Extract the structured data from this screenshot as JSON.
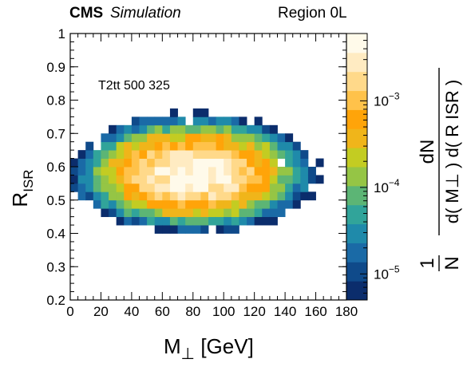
{
  "header": {
    "experiment": "CMS",
    "tag": "Simulation",
    "region": "Region 0L"
  },
  "chart_data": {
    "type": "heatmap",
    "annotation": "T2tt 500 325",
    "xlabel": {
      "base": "M",
      "sub": "⊥",
      "unit": " [GeV]"
    },
    "ylabel": {
      "base": "R",
      "sub": "ISR"
    },
    "zlabel": {
      "prefix": "1",
      "prefix_den": "N",
      "numerator": "dN",
      "denominator": "d( M⊥ ) d( R ISR )"
    },
    "xlim": [
      0,
      180
    ],
    "ylim": [
      0.2,
      1.0
    ],
    "xticks": [
      "0",
      "20",
      "40",
      "60",
      "80",
      "100",
      "120",
      "140",
      "160",
      "180"
    ],
    "yticks": [
      "0.2",
      "0.3",
      "0.4",
      "0.5",
      "0.6",
      "0.7",
      "0.8",
      "0.9",
      "1"
    ],
    "zscale": "log",
    "zlim": [
      5e-06,
      0.006
    ],
    "zticks": [
      {
        "value": 1e-05,
        "label": "10",
        "exp": "−5"
      },
      {
        "value": 0.0001,
        "label": "10",
        "exp": "−4"
      },
      {
        "value": 0.001,
        "label": "10",
        "exp": "−3"
      }
    ],
    "nbins_x": 36,
    "nbins_y": 32,
    "bin_width_x": 5,
    "bin_width_y": 0.025,
    "colormap": [
      "#0b2d6c",
      "#0f4a8a",
      "#1a6aa6",
      "#1f8aaa",
      "#31a49a",
      "#5cb575",
      "#95c545",
      "#c3cc22",
      "#f0b51a",
      "#ffa409",
      "#ffc24a",
      "#ffd98a",
      "#ffebc2",
      "#fffaea"
    ],
    "peak": {
      "x": 80,
      "y": 0.58,
      "value": 0.005
    },
    "grid": false
  }
}
